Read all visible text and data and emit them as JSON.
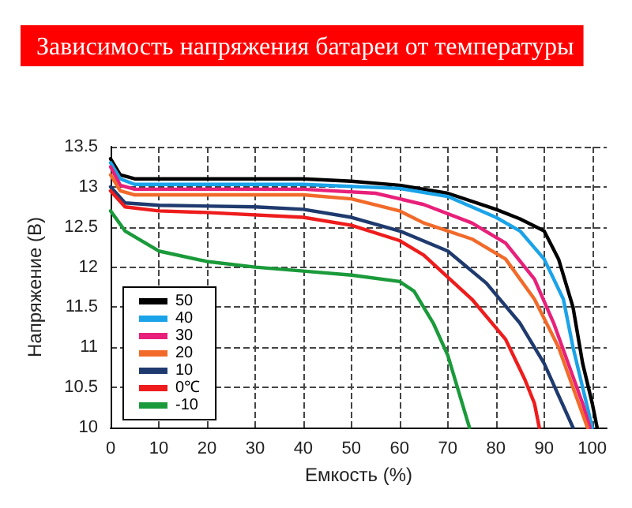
{
  "chart_data": {
    "type": "line",
    "title": "Зависимость напряжения батареи от температуры",
    "xlabel": "Емкость (%)",
    "ylabel": "Напряжение (В)",
    "xlim": [
      0,
      103
    ],
    "xticks": [
      0,
      10,
      20,
      30,
      40,
      50,
      60,
      70,
      80,
      90,
      100
    ],
    "ylim": [
      10,
      13.5
    ],
    "yticks": [
      10,
      10.5,
      11,
      11.5,
      12,
      12.5,
      13,
      13.5
    ],
    "grid": true,
    "legend": "bottom left",
    "marker": "none",
    "line_style": "solid",
    "series": [
      {
        "name": "50",
        "color": "#000000",
        "x": [
          0,
          2,
          5,
          20,
          40,
          50,
          60,
          70,
          80,
          85,
          90,
          93,
          96,
          98,
          100,
          101
        ],
        "values": [
          13.35,
          13.15,
          13.1,
          13.1,
          13.1,
          13.07,
          13.02,
          12.92,
          12.72,
          12.6,
          12.45,
          12.1,
          11.5,
          10.8,
          10.3,
          10.0
        ]
      },
      {
        "name": "40",
        "color": "#1aa3e8",
        "x": [
          0,
          2,
          5,
          20,
          40,
          60,
          70,
          80,
          85,
          90,
          94,
          96,
          98,
          100
        ],
        "values": [
          13.3,
          13.1,
          13.03,
          13.03,
          13.03,
          12.98,
          12.88,
          12.62,
          12.45,
          12.1,
          11.6,
          11.0,
          10.5,
          10.0
        ]
      },
      {
        "name": "30",
        "color": "#e8207a",
        "x": [
          0,
          2,
          5,
          20,
          40,
          55,
          65,
          75,
          82,
          88,
          92,
          95,
          98,
          99.5
        ],
        "values": [
          13.25,
          13.02,
          12.97,
          12.97,
          12.97,
          12.92,
          12.78,
          12.55,
          12.3,
          11.85,
          11.3,
          10.8,
          10.3,
          10.0
        ]
      },
      {
        "name": "20",
        "color": "#f26a2a",
        "x": [
          0,
          2,
          5,
          20,
          40,
          50,
          60,
          65,
          75,
          82,
          88,
          93,
          96,
          99
        ],
        "values": [
          13.15,
          12.95,
          12.9,
          12.9,
          12.9,
          12.85,
          12.7,
          12.55,
          12.35,
          12.1,
          11.6,
          11.0,
          10.5,
          10.0
        ]
      },
      {
        "name": "10",
        "color": "#1f3a6e",
        "x": [
          0,
          3,
          10,
          30,
          40,
          50,
          60,
          70,
          78,
          85,
          90,
          93,
          96
        ],
        "values": [
          13.0,
          12.8,
          12.77,
          12.75,
          12.72,
          12.62,
          12.45,
          12.2,
          11.8,
          11.3,
          10.8,
          10.4,
          10.0
        ]
      },
      {
        "name": "0℃",
        "color": "#ee1c1c",
        "x": [
          0,
          3,
          10,
          20,
          40,
          50,
          60,
          65,
          75,
          82,
          86,
          88,
          89
        ],
        "values": [
          12.95,
          12.75,
          12.7,
          12.68,
          12.62,
          12.52,
          12.33,
          12.15,
          11.6,
          11.1,
          10.6,
          10.3,
          10.0
        ]
      },
      {
        "name": "-10",
        "color": "#1a9a3a",
        "x": [
          0,
          3,
          10,
          20,
          30,
          40,
          50,
          60,
          63,
          67,
          70,
          72,
          74,
          74.5
        ],
        "values": [
          12.7,
          12.45,
          12.2,
          12.07,
          12.0,
          11.95,
          11.9,
          11.82,
          11.7,
          11.3,
          10.9,
          10.5,
          10.1,
          10.0
        ]
      }
    ]
  }
}
